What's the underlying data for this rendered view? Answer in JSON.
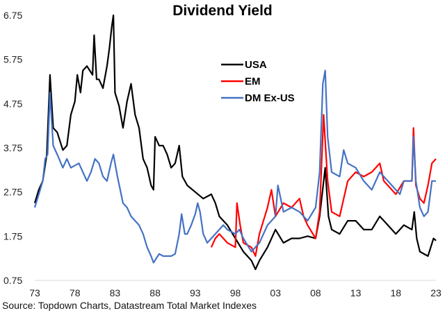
{
  "chart_data": {
    "type": "line",
    "title": "Dividend Yield",
    "source": "Source: Topdown Charts, Datastream Total Market Indexes",
    "xlim": [
      1973,
      2023
    ],
    "ylim": [
      0.75,
      6.75
    ],
    "x_ticks": [
      1973,
      1978,
      1983,
      1988,
      1993,
      1998,
      2003,
      2008,
      2013,
      2018,
      2023
    ],
    "x_tick_labels": [
      "73",
      "78",
      "83",
      "88",
      "93",
      "98",
      "03",
      "08",
      "13",
      "18",
      "23"
    ],
    "y_ticks": [
      0.75,
      1.75,
      2.75,
      3.75,
      4.75,
      5.75,
      6.75
    ],
    "y_tick_labels": [
      "0.75",
      "1.75",
      "2.75",
      "3.75",
      "4.75",
      "5.75",
      "6.75"
    ],
    "grid": false,
    "legend_position": "top-center",
    "series": [
      {
        "name": "USA",
        "color": "#000000",
        "points": [
          [
            1973,
            2.5
          ],
          [
            1973.5,
            2.8
          ],
          [
            1974,
            3.0
          ],
          [
            1974.5,
            3.6
          ],
          [
            1974.9,
            5.4
          ],
          [
            1975.3,
            4.2
          ],
          [
            1975.8,
            4.1
          ],
          [
            1976.5,
            3.7
          ],
          [
            1977,
            3.8
          ],
          [
            1977.5,
            4.5
          ],
          [
            1978,
            4.8
          ],
          [
            1978.3,
            5.4
          ],
          [
            1978.7,
            5.0
          ],
          [
            1979,
            5.5
          ],
          [
            1979.5,
            5.6
          ],
          [
            1980.2,
            5.4
          ],
          [
            1980.4,
            6.3
          ],
          [
            1980.7,
            5.3
          ],
          [
            1981,
            5.3
          ],
          [
            1981.5,
            5.1
          ],
          [
            1982,
            5.6
          ],
          [
            1982.3,
            6.0
          ],
          [
            1982.6,
            6.5
          ],
          [
            1982.8,
            6.75
          ],
          [
            1983,
            5.0
          ],
          [
            1983.5,
            4.7
          ],
          [
            1984,
            4.2
          ],
          [
            1984.5,
            4.8
          ],
          [
            1985,
            5.2
          ],
          [
            1985.5,
            4.5
          ],
          [
            1986,
            4.2
          ],
          [
            1986.5,
            3.5
          ],
          [
            1987,
            3.3
          ],
          [
            1987.5,
            2.9
          ],
          [
            1987.8,
            2.8
          ],
          [
            1988,
            4.0
          ],
          [
            1988.5,
            3.8
          ],
          [
            1989,
            3.8
          ],
          [
            1989.5,
            3.6
          ],
          [
            1990,
            3.3
          ],
          [
            1990.5,
            3.4
          ],
          [
            1991,
            3.8
          ],
          [
            1991.4,
            3.1
          ],
          [
            1992,
            2.9
          ],
          [
            1993,
            2.75
          ],
          [
            1994,
            2.6
          ],
          [
            1995,
            2.7
          ],
          [
            1995.5,
            2.5
          ],
          [
            1996,
            2.2
          ],
          [
            1997,
            2.0
          ],
          [
            1998,
            1.7
          ],
          [
            1999,
            1.4
          ],
          [
            2000,
            1.2
          ],
          [
            2000.5,
            1.0
          ],
          [
            2001,
            1.2
          ],
          [
            2002,
            1.5
          ],
          [
            2003,
            1.9
          ],
          [
            2004,
            1.6
          ],
          [
            2005,
            1.7
          ],
          [
            2006,
            1.7
          ],
          [
            2007,
            1.75
          ],
          [
            2008,
            1.7
          ],
          [
            2008.5,
            2.2
          ],
          [
            2009.2,
            3.3
          ],
          [
            2009.6,
            2.2
          ],
          [
            2010,
            1.9
          ],
          [
            2011,
            1.8
          ],
          [
            2012,
            2.1
          ],
          [
            2013,
            2.1
          ],
          [
            2014,
            1.9
          ],
          [
            2015,
            1.9
          ],
          [
            2016,
            2.2
          ],
          [
            2017,
            2.0
          ],
          [
            2018,
            1.8
          ],
          [
            2019,
            2.0
          ],
          [
            2020,
            1.9
          ],
          [
            2020.3,
            2.3
          ],
          [
            2020.6,
            1.7
          ],
          [
            2021,
            1.4
          ],
          [
            2022,
            1.3
          ],
          [
            2022.7,
            1.7
          ],
          [
            2023,
            1.65
          ]
        ]
      },
      {
        "name": "EM",
        "color": "#ff0000",
        "points": [
          [
            1995,
            1.5
          ],
          [
            1995.5,
            1.7
          ],
          [
            1996,
            1.8
          ],
          [
            1997,
            1.6
          ],
          [
            1998,
            1.5
          ],
          [
            1998.2,
            2.5
          ],
          [
            1998.6,
            2.0
          ],
          [
            1999,
            1.6
          ],
          [
            2000,
            1.5
          ],
          [
            2000.5,
            1.3
          ],
          [
            2001,
            1.8
          ],
          [
            2002,
            2.4
          ],
          [
            2002.5,
            2.8
          ],
          [
            2003,
            2.2
          ],
          [
            2004,
            2.5
          ],
          [
            2005,
            2.4
          ],
          [
            2006,
            2.6
          ],
          [
            2006.5,
            2.2
          ],
          [
            2007,
            2.0
          ],
          [
            2008,
            1.7
          ],
          [
            2008.5,
            2.3
          ],
          [
            2009,
            4.5
          ],
          [
            2009.5,
            3.0
          ],
          [
            2010,
            2.3
          ],
          [
            2011,
            2.2
          ],
          [
            2012,
            3.0
          ],
          [
            2013,
            3.2
          ],
          [
            2014,
            3.1
          ],
          [
            2015,
            3.2
          ],
          [
            2016,
            3.4
          ],
          [
            2016.5,
            3.0
          ],
          [
            2017,
            2.9
          ],
          [
            2018,
            2.7
          ],
          [
            2019,
            3.0
          ],
          [
            2020,
            3.0
          ],
          [
            2020.2,
            4.2
          ],
          [
            2020.5,
            2.9
          ],
          [
            2021,
            2.6
          ],
          [
            2021.5,
            2.5
          ],
          [
            2022,
            2.9
          ],
          [
            2022.5,
            3.4
          ],
          [
            2023,
            3.5
          ]
        ]
      },
      {
        "name": "DM Ex-US",
        "color": "#4472c4",
        "points": [
          [
            1973,
            2.4
          ],
          [
            1973.5,
            2.7
          ],
          [
            1974,
            3.0
          ],
          [
            1974.3,
            3.5
          ],
          [
            1974.6,
            3.6
          ],
          [
            1974.9,
            5.0
          ],
          [
            1975.3,
            3.8
          ],
          [
            1975.8,
            3.6
          ],
          [
            1976.5,
            3.3
          ],
          [
            1977,
            3.5
          ],
          [
            1977.5,
            3.3
          ],
          [
            1978.5,
            3.4
          ],
          [
            1979,
            3.2
          ],
          [
            1979.5,
            3.0
          ],
          [
            1980,
            3.2
          ],
          [
            1980.5,
            3.5
          ],
          [
            1981,
            3.4
          ],
          [
            1981.5,
            3.1
          ],
          [
            1982,
            3.0
          ],
          [
            1982.5,
            3.4
          ],
          [
            1982.8,
            3.6
          ],
          [
            1983.3,
            3.1
          ],
          [
            1984,
            2.5
          ],
          [
            1984.5,
            2.4
          ],
          [
            1985,
            2.2
          ],
          [
            1986,
            2.0
          ],
          [
            1986.5,
            1.8
          ],
          [
            1987,
            1.5
          ],
          [
            1987.5,
            1.3
          ],
          [
            1987.8,
            1.15
          ],
          [
            1988.5,
            1.35
          ],
          [
            1989,
            1.3
          ],
          [
            1990,
            1.3
          ],
          [
            1990.5,
            1.35
          ],
          [
            1991,
            1.8
          ],
          [
            1991.3,
            2.25
          ],
          [
            1991.7,
            1.8
          ],
          [
            1992,
            1.8
          ],
          [
            1992.5,
            2.0
          ],
          [
            1993,
            2.25
          ],
          [
            1993.3,
            2.5
          ],
          [
            1993.6,
            2.3
          ],
          [
            1994,
            1.8
          ],
          [
            1994.5,
            1.6
          ],
          [
            1995,
            1.7
          ],
          [
            1996,
            1.9
          ],
          [
            1996.5,
            2.0
          ],
          [
            1997,
            1.9
          ],
          [
            1998,
            1.8
          ],
          [
            1998.5,
            1.9
          ],
          [
            1999,
            1.7
          ],
          [
            2000,
            1.4
          ],
          [
            2001,
            1.6
          ],
          [
            2002,
            2.0
          ],
          [
            2003,
            2.2
          ],
          [
            2003.3,
            2.9
          ],
          [
            2004,
            2.3
          ],
          [
            2005,
            2.4
          ],
          [
            2006,
            2.3
          ],
          [
            2007,
            2.1
          ],
          [
            2008,
            2.4
          ],
          [
            2008.5,
            3.2
          ],
          [
            2008.9,
            5.2
          ],
          [
            2009.2,
            5.5
          ],
          [
            2009.5,
            4.0
          ],
          [
            2010,
            3.2
          ],
          [
            2011,
            3.1
          ],
          [
            2011.5,
            3.7
          ],
          [
            2012,
            3.4
          ],
          [
            2013,
            3.3
          ],
          [
            2014,
            3.0
          ],
          [
            2015,
            2.8
          ],
          [
            2016,
            3.2
          ],
          [
            2017,
            3.0
          ],
          [
            2018,
            2.8
          ],
          [
            2018.5,
            2.7
          ],
          [
            2019,
            3.0
          ],
          [
            2020,
            3.0
          ],
          [
            2020.2,
            4.0
          ],
          [
            2020.5,
            3.0
          ],
          [
            2021,
            2.4
          ],
          [
            2021.5,
            2.2
          ],
          [
            2022,
            2.3
          ],
          [
            2022.5,
            3.0
          ],
          [
            2023,
            3.0
          ]
        ]
      }
    ]
  }
}
